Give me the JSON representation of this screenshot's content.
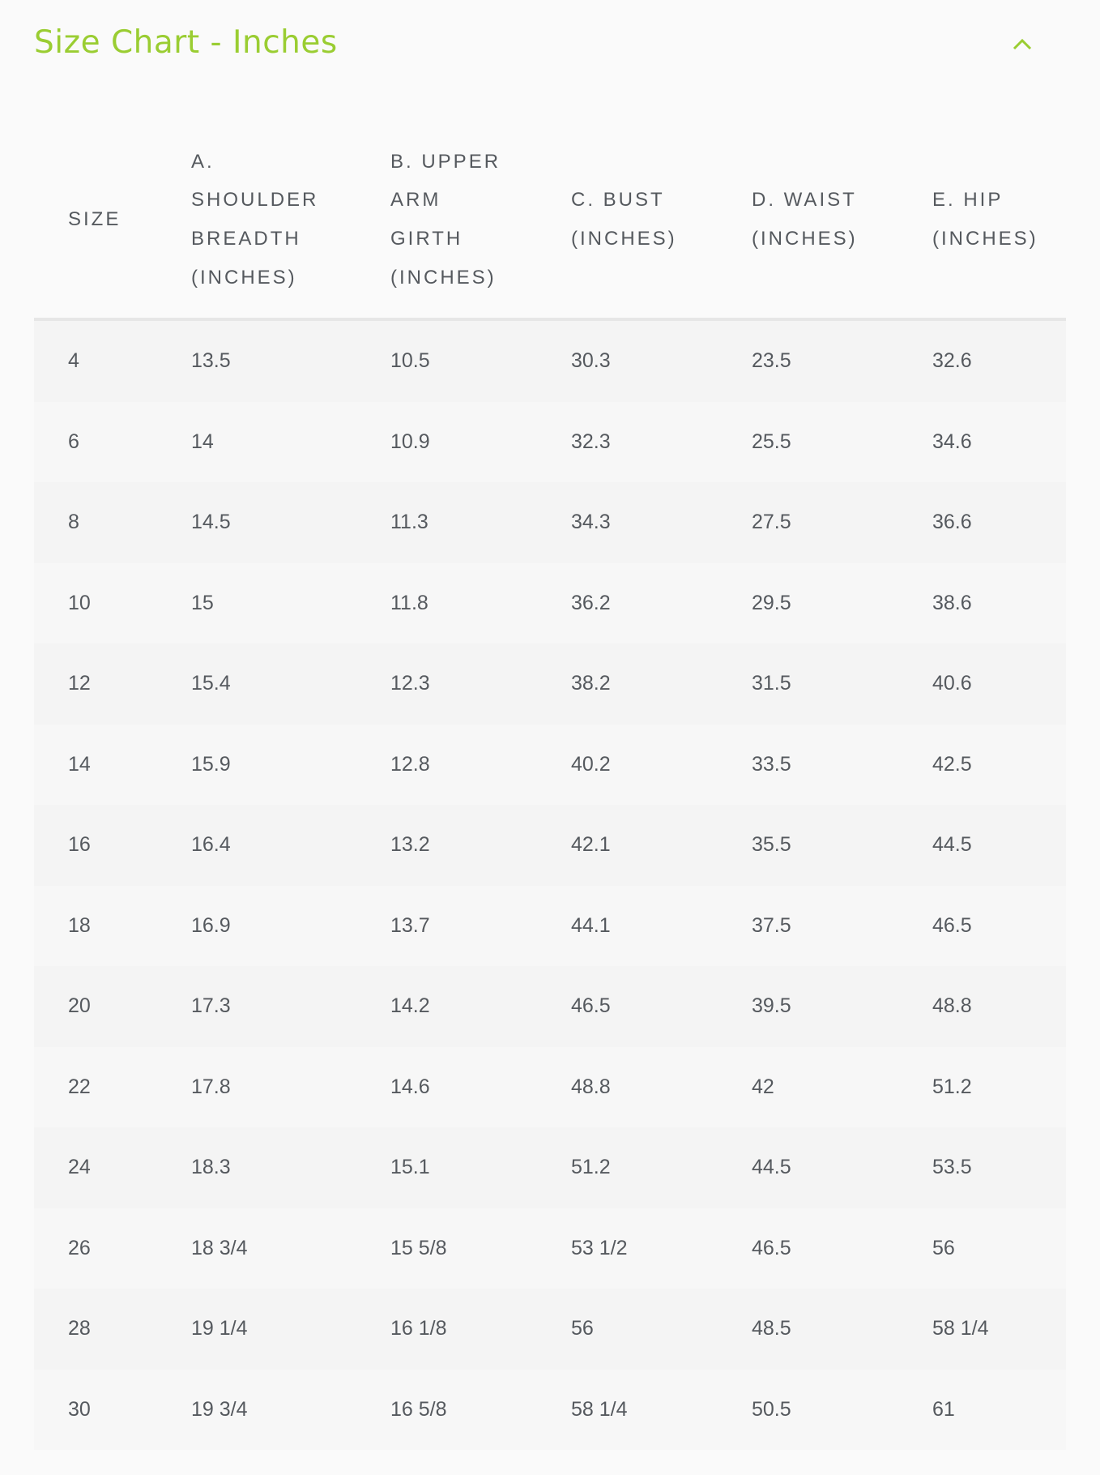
{
  "title": "Size Chart - Inches",
  "accent_color": "#9acd32",
  "collapse_icon": "chevron-up-icon",
  "headers": [
    "SIZE",
    "A. SHOULDER BREADTH (INCHES)",
    "B. UPPER ARM GIRTH (INCHES)",
    "C. BUST (INCHES)",
    "D. WAIST (INCHES)",
    "E. HIP (INCHES)"
  ],
  "rows": [
    [
      "4",
      "13.5",
      "10.5",
      "30.3",
      "23.5",
      "32.6"
    ],
    [
      "6",
      "14",
      "10.9",
      "32.3",
      "25.5",
      "34.6"
    ],
    [
      "8",
      "14.5",
      "11.3",
      "34.3",
      "27.5",
      "36.6"
    ],
    [
      "10",
      "15",
      "11.8",
      "36.2",
      "29.5",
      "38.6"
    ],
    [
      "12",
      "15.4",
      "12.3",
      "38.2",
      "31.5",
      "40.6"
    ],
    [
      "14",
      "15.9",
      "12.8",
      "40.2",
      "33.5",
      "42.5"
    ],
    [
      "16",
      "16.4",
      "13.2",
      "42.1",
      "35.5",
      "44.5"
    ],
    [
      "18",
      "16.9",
      "13.7",
      "44.1",
      "37.5",
      "46.5"
    ],
    [
      "20",
      "17.3",
      "14.2",
      "46.5",
      "39.5",
      "48.8"
    ],
    [
      "22",
      "17.8",
      "14.6",
      "48.8",
      "42",
      "51.2"
    ],
    [
      "24",
      "18.3",
      "15.1",
      "51.2",
      "44.5",
      "53.5"
    ],
    [
      "26",
      "18 3/4",
      "15 5/8",
      "53 1/2",
      "46.5",
      "56"
    ],
    [
      "28",
      "19 1/4",
      "16 1/8",
      "56",
      "48.5",
      "58 1/4"
    ],
    [
      "30",
      "19 3/4",
      "16 5/8",
      "58 1/4",
      "50.5",
      "61"
    ]
  ]
}
